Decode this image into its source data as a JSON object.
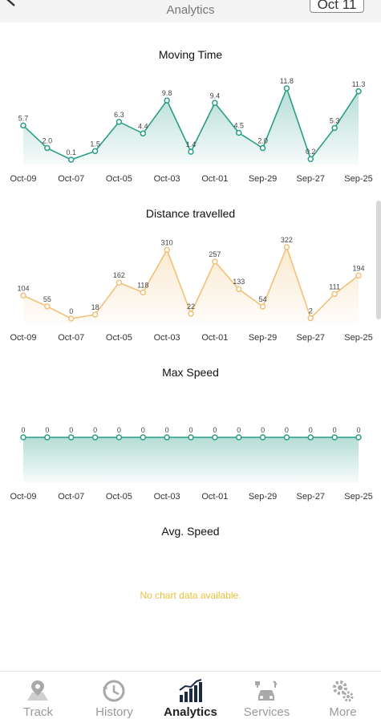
{
  "header": {
    "subtitle": "Analytics",
    "date_button": "Oct 11"
  },
  "colors": {
    "moving_time": "#2a9d88",
    "distance": "#f2c078",
    "max_speed": "#2a9d88",
    "empty_message": "#e8c13a"
  },
  "charts": {
    "moving_time": {
      "title": "Moving Time"
    },
    "distance": {
      "title": "Distance travelled"
    },
    "max_speed": {
      "title": "Max Speed"
    },
    "avg_speed": {
      "title": "Avg. Speed",
      "empty_message": "No chart data available."
    }
  },
  "chart_data": [
    {
      "type": "line",
      "title": "Moving Time",
      "x_tick_labels": [
        "Oct-09",
        "Oct-07",
        "Oct-05",
        "Oct-03",
        "Oct-01",
        "Sep-29",
        "Sep-27",
        "Sep-25"
      ],
      "values": [
        5.7,
        2.0,
        0.1,
        1.5,
        6.3,
        4.4,
        9.8,
        1.4,
        9.4,
        4.5,
        2.0,
        11.8,
        0.2,
        5.3,
        11.3
      ],
      "value_labels": [
        "5.7",
        "2.0",
        "0.1",
        "1.5",
        "6.3",
        "4.4",
        "9.8",
        "1.4",
        "9.4",
        "4.5",
        "2.0",
        "11.8",
        "0.2",
        "5.3",
        "11.3"
      ],
      "area_fill": true
    },
    {
      "type": "line",
      "title": "Distance travelled",
      "x_tick_labels": [
        "Oct-09",
        "Oct-07",
        "Oct-05",
        "Oct-03",
        "Oct-01",
        "Sep-29",
        "Sep-27",
        "Sep-25"
      ],
      "values": [
        104,
        55,
        0,
        18,
        162,
        118,
        310,
        22,
        257,
        133,
        54,
        322,
        2,
        111,
        194
      ],
      "value_labels": [
        "104",
        "55",
        "0",
        "18",
        "162",
        "118",
        "310",
        "22",
        "257",
        "133",
        "54",
        "322",
        "2",
        "111",
        "194"
      ],
      "area_fill": true
    },
    {
      "type": "line",
      "title": "Max Speed",
      "x_tick_labels": [
        "Oct-09",
        "Oct-07",
        "Oct-05",
        "Oct-03",
        "Oct-01",
        "Sep-29",
        "Sep-27",
        "Sep-25"
      ],
      "values": [
        0,
        0,
        0,
        0,
        0,
        0,
        0,
        0,
        0,
        0,
        0,
        0,
        0,
        0,
        0
      ],
      "value_labels": [
        "0",
        "0",
        "0",
        "0",
        "0",
        "0",
        "0",
        "0",
        "0",
        "0",
        "0",
        "0",
        "0",
        "0",
        "0"
      ],
      "area_fill": true
    }
  ],
  "nav": {
    "items": [
      {
        "label": "Track",
        "icon": "map-pin-icon"
      },
      {
        "label": "History",
        "icon": "history-icon"
      },
      {
        "label": "Analytics",
        "icon": "bar-chart-icon"
      },
      {
        "label": "Services",
        "icon": "car-service-icon"
      },
      {
        "label": "More",
        "icon": "gears-icon"
      }
    ],
    "active": "Analytics"
  }
}
